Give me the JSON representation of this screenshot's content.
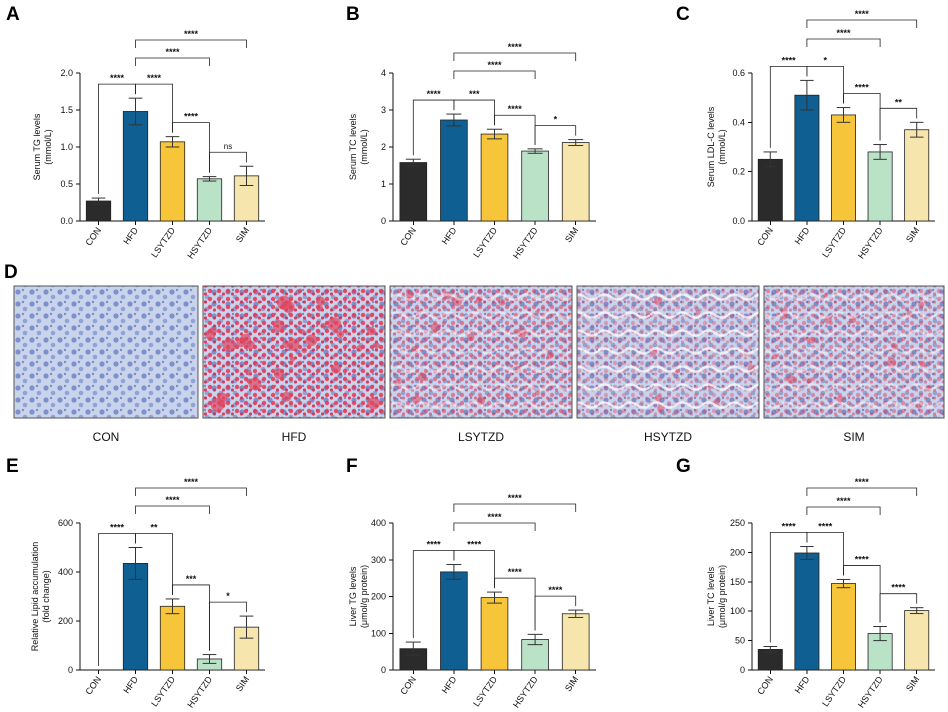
{
  "figure": {
    "colors": {
      "CON": "#2b2b2b",
      "HFD": "#0f5f92",
      "LSYTZD": "#f7c53a",
      "HSYTZD": "#b9e2c6",
      "SIM": "#f6e6ad",
      "stain_blue": "#7f9ad0",
      "stain_red": "#e0445e"
    },
    "micrographs": {
      "letter": "D",
      "captions": [
        "CON",
        "HFD",
        "LSYTZD",
        "HSYTZD",
        "SIM"
      ],
      "red_intensity": [
        0.0,
        0.85,
        0.55,
        0.35,
        0.45
      ]
    }
  },
  "chart_data": [
    {
      "letter": "A",
      "type": "bar",
      "categories": [
        "CON",
        "HFD",
        "LSYTZD",
        "HSYTZD",
        "SIM"
      ],
      "values": [
        0.27,
        1.48,
        1.07,
        0.57,
        0.61
      ],
      "errors": [
        0.04,
        0.18,
        0.07,
        0.03,
        0.13
      ],
      "ylabel": "Serum TG levels\n(mmol/L)",
      "ylim": [
        0,
        2.0
      ],
      "ticks": [
        0,
        0.5,
        1.0,
        1.5,
        2.0
      ],
      "tick_labels": [
        "0.0",
        "0.5",
        "1.0",
        "1.5",
        "2.0"
      ],
      "comparisons": [
        {
          "from": 0,
          "to": 1,
          "label": "****",
          "level": 0
        },
        {
          "from": 1,
          "to": 2,
          "label": "****",
          "level": 0
        },
        {
          "from": 2,
          "to": 3,
          "label": "****",
          "level": 0
        },
        {
          "from": 3,
          "to": 4,
          "label": "ns",
          "level": 0
        },
        {
          "from": 1,
          "to": 3,
          "label": "****",
          "level": 1
        },
        {
          "from": 1,
          "to": 4,
          "label": "****",
          "level": 2
        }
      ]
    },
    {
      "letter": "B",
      "type": "bar",
      "categories": [
        "CON",
        "HFD",
        "LSYTZD",
        "HSYTZD",
        "SIM"
      ],
      "values": [
        1.58,
        2.73,
        2.35,
        1.89,
        2.12
      ],
      "errors": [
        0.09,
        0.16,
        0.13,
        0.06,
        0.08
      ],
      "ylabel": "Serum TC levels\n(mmol/L)",
      "ylim": [
        0,
        4
      ],
      "ticks": [
        0,
        1,
        2,
        3,
        4
      ],
      "tick_labels": [
        "0",
        "1",
        "2",
        "3",
        "4"
      ],
      "comparisons": [
        {
          "from": 0,
          "to": 1,
          "label": "****",
          "level": 0
        },
        {
          "from": 1,
          "to": 2,
          "label": "***",
          "level": 0
        },
        {
          "from": 2,
          "to": 3,
          "label": "****",
          "level": 0
        },
        {
          "from": 3,
          "to": 4,
          "label": "*",
          "level": 0
        },
        {
          "from": 1,
          "to": 3,
          "label": "****",
          "level": 1
        },
        {
          "from": 1,
          "to": 4,
          "label": "****",
          "level": 2
        }
      ]
    },
    {
      "letter": "C",
      "type": "bar",
      "categories": [
        "CON",
        "HFD",
        "LSYTZD",
        "HSYTZD",
        "SIM"
      ],
      "values": [
        0.25,
        0.51,
        0.43,
        0.28,
        0.37
      ],
      "errors": [
        0.03,
        0.06,
        0.03,
        0.03,
        0.03
      ],
      "ylabel": "Serum LDL-C levels\n(mmol/L)",
      "ylim": [
        0,
        0.6
      ],
      "ticks": [
        0,
        0.2,
        0.4,
        0.6
      ],
      "tick_labels": [
        "0.0",
        "0.2",
        "0.4",
        "0.6"
      ],
      "comparisons": [
        {
          "from": 0,
          "to": 1,
          "label": "****",
          "level": 0
        },
        {
          "from": 1,
          "to": 2,
          "label": "*",
          "level": 0
        },
        {
          "from": 2,
          "to": 3,
          "label": "****",
          "level": 0
        },
        {
          "from": 3,
          "to": 4,
          "label": "**",
          "level": 0
        },
        {
          "from": 1,
          "to": 3,
          "label": "****",
          "level": 1
        },
        {
          "from": 1,
          "to": 4,
          "label": "****",
          "level": 2
        }
      ]
    },
    {
      "letter": "E",
      "type": "bar",
      "categories": [
        "CON",
        "HFD",
        "LSYTZD",
        "HSYTZD",
        "SIM"
      ],
      "values": [
        0,
        435,
        260,
        45,
        175
      ],
      "errors": [
        0,
        65,
        30,
        18,
        45
      ],
      "ylabel": "Relative Lipid accumulation\n(fold change)",
      "ylim": [
        0,
        600
      ],
      "ticks": [
        0,
        200,
        400,
        600
      ],
      "tick_labels": [
        "0",
        "200",
        "400",
        "600"
      ],
      "comparisons": [
        {
          "from": 0,
          "to": 1,
          "label": "****",
          "level": 0
        },
        {
          "from": 1,
          "to": 2,
          "label": "**",
          "level": 0
        },
        {
          "from": 2,
          "to": 3,
          "label": "***",
          "level": 0
        },
        {
          "from": 3,
          "to": 4,
          "label": "*",
          "level": 0
        },
        {
          "from": 1,
          "to": 3,
          "label": "****",
          "level": 1
        },
        {
          "from": 1,
          "to": 4,
          "label": "****",
          "level": 2
        }
      ]
    },
    {
      "letter": "F",
      "type": "bar",
      "categories": [
        "CON",
        "HFD",
        "LSYTZD",
        "HSYTZD",
        "SIM"
      ],
      "values": [
        58,
        267,
        197,
        83,
        153
      ],
      "errors": [
        18,
        20,
        15,
        14,
        10
      ],
      "ylabel": "Liver TG levels\n(μmol/g protein)",
      "ylim": [
        0,
        400
      ],
      "ticks": [
        0,
        100,
        200,
        300,
        400
      ],
      "tick_labels": [
        "0",
        "100",
        "200",
        "300",
        "400"
      ],
      "comparisons": [
        {
          "from": 0,
          "to": 1,
          "label": "****",
          "level": 0
        },
        {
          "from": 1,
          "to": 2,
          "label": "****",
          "level": 0
        },
        {
          "from": 2,
          "to": 3,
          "label": "****",
          "level": 0
        },
        {
          "from": 3,
          "to": 4,
          "label": "****",
          "level": 0
        },
        {
          "from": 1,
          "to": 3,
          "label": "****",
          "level": 1
        },
        {
          "from": 1,
          "to": 4,
          "label": "****",
          "level": 2
        }
      ]
    },
    {
      "letter": "G",
      "type": "bar",
      "categories": [
        "CON",
        "HFD",
        "LSYTZD",
        "HSYTZD",
        "SIM"
      ],
      "values": [
        35,
        199,
        147,
        62,
        101
      ],
      "errors": [
        5,
        11,
        7,
        12,
        5
      ],
      "ylabel": "Liver TC levels\n(μmol/g protein)",
      "ylim": [
        0,
        250
      ],
      "ticks": [
        0,
        50,
        100,
        150,
        200,
        250
      ],
      "tick_labels": [
        "0",
        "50",
        "100",
        "150",
        "200",
        "250"
      ],
      "comparisons": [
        {
          "from": 0,
          "to": 1,
          "label": "****",
          "level": 0
        },
        {
          "from": 1,
          "to": 2,
          "label": "****",
          "level": 0
        },
        {
          "from": 2,
          "to": 3,
          "label": "****",
          "level": 0
        },
        {
          "from": 3,
          "to": 4,
          "label": "****",
          "level": 0
        },
        {
          "from": 1,
          "to": 3,
          "label": "****",
          "level": 1
        },
        {
          "from": 1,
          "to": 4,
          "label": "****",
          "level": 2
        }
      ]
    }
  ]
}
